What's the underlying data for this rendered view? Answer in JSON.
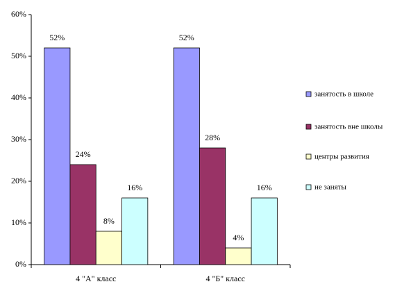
{
  "chart_data": {
    "type": "bar",
    "categories": [
      "4 \"А\" класс",
      "4 \"Б\" класс"
    ],
    "series": [
      {
        "name": "занятость в школе",
        "color": "#9999ff",
        "values": [
          52,
          52
        ],
        "value_labels": [
          "52%",
          "52%"
        ]
      },
      {
        "name": "занятость вне школы",
        "color": "#993366",
        "values": [
          24,
          28
        ],
        "value_labels": [
          "24%",
          "28%"
        ]
      },
      {
        "name": "центры развития",
        "color": "#ffffcc",
        "values": [
          8,
          4
        ],
        "value_labels": [
          "8%",
          "4%"
        ]
      },
      {
        "name": "не заняты",
        "color": "#ccffff",
        "values": [
          16,
          16
        ],
        "value_labels": [
          "16%",
          "16%"
        ]
      }
    ],
    "ylim": [
      0,
      60
    ],
    "yticks": [
      {
        "value": 0,
        "label": "0%"
      },
      {
        "value": 10,
        "label": "10%"
      },
      {
        "value": 20,
        "label": "20%"
      },
      {
        "value": 30,
        "label": "30%"
      },
      {
        "value": 40,
        "label": "40%"
      },
      {
        "value": 50,
        "label": "50%"
      },
      {
        "value": 60,
        "label": "60%"
      }
    ],
    "legend": "right"
  }
}
